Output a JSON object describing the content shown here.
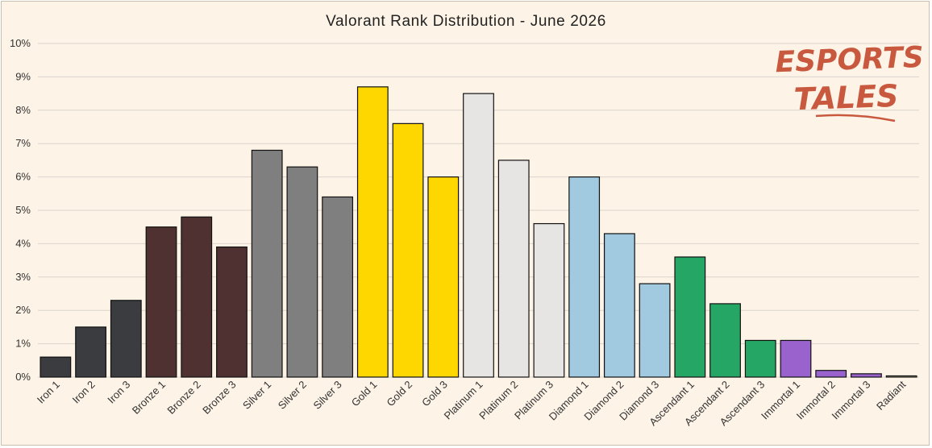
{
  "chart_data": {
    "type": "bar",
    "title": "Valorant Rank Distribution - June 2026",
    "xlabel": "",
    "ylabel": "",
    "ylim": [
      0,
      10
    ],
    "yticks": [
      "0%",
      "1%",
      "2%",
      "3%",
      "4%",
      "5%",
      "6%",
      "7%",
      "8%",
      "9%",
      "10%"
    ],
    "grid": true,
    "categories": [
      "Iron 1",
      "Iron 2",
      "Iron 3",
      "Bronze 1",
      "Bronze 2",
      "Bronze 3",
      "Silver 1",
      "Silver 2",
      "Silver 3",
      "Gold 1",
      "Gold 2",
      "Gold 3",
      "Platinum 1",
      "Platinum 2",
      "Platinum 3",
      "Diamond 1",
      "Diamond 2",
      "Diamond 3",
      "Ascendant 1",
      "Ascendant 2",
      "Ascendant 3",
      "Immortal 1",
      "Immortal 2",
      "Immortal 3",
      "Radiant"
    ],
    "values": [
      0.6,
      1.5,
      2.3,
      4.5,
      4.8,
      3.9,
      6.8,
      6.3,
      5.4,
      8.7,
      7.6,
      6.0,
      8.5,
      6.5,
      4.6,
      6.0,
      4.3,
      2.8,
      3.6,
      2.2,
      1.1,
      1.1,
      0.2,
      0.1,
      0.03
    ],
    "colors": [
      "#3b3c3f",
      "#3b3c3f",
      "#3b3c3f",
      "#4e3130",
      "#4e3130",
      "#4e3130",
      "#7f7f7f",
      "#7f7f7f",
      "#7f7f7f",
      "#ffd700",
      "#ffd700",
      "#ffd700",
      "#e6e5e4",
      "#e6e5e4",
      "#e6e5e4",
      "#a1c9df",
      "#a1c9df",
      "#a1c9df",
      "#26a664",
      "#26a664",
      "#26a664",
      "#9a62cc",
      "#9a62cc",
      "#9a62cc",
      "#f2e2b3"
    ]
  },
  "logo": {
    "line1": "ESPORTS",
    "line2": "TALES",
    "color": "#c8593f"
  }
}
